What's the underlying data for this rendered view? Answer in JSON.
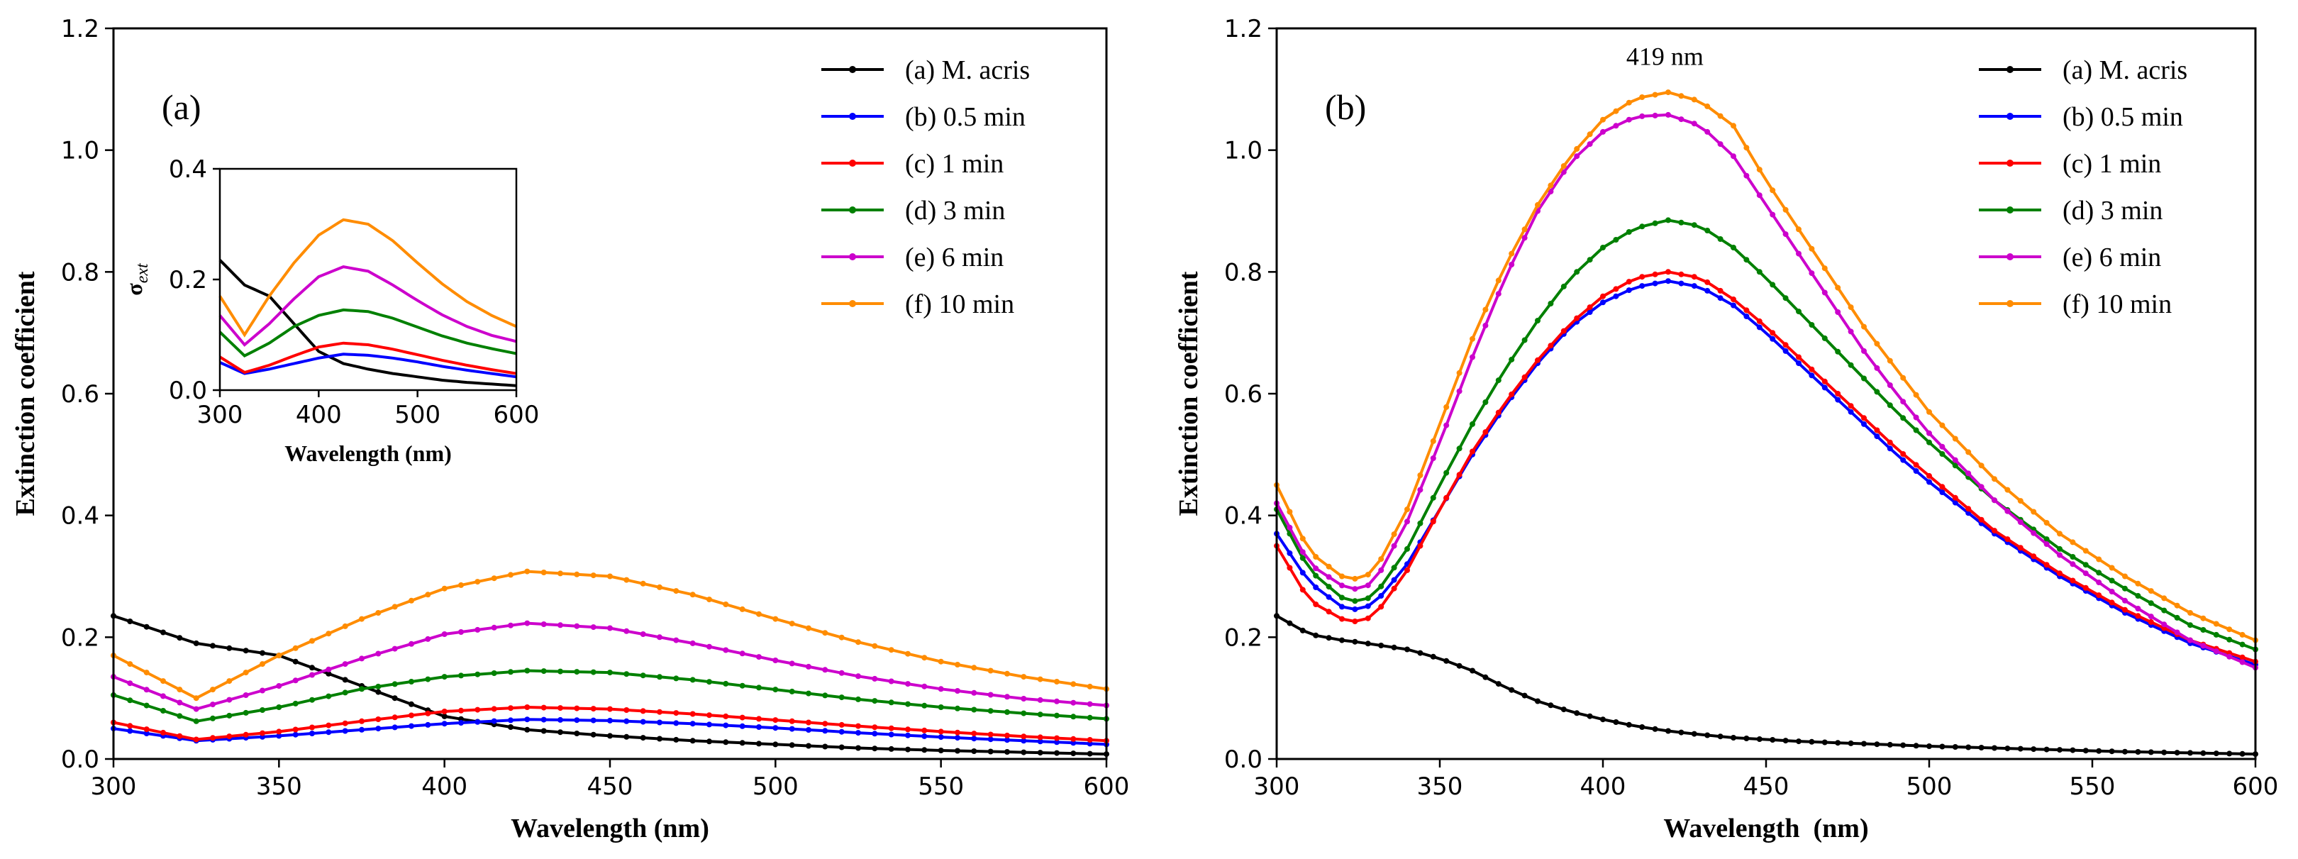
{
  "chart_data": [
    {
      "type": "line",
      "panel_label": "(a)",
      "xlabel": "Wavelength (nm)",
      "ylabel": "Extinction coefficient",
      "xlim": [
        300,
        600
      ],
      "ylim": [
        0,
        1.2
      ],
      "x_ticks": [
        "300",
        "350",
        "400",
        "450",
        "500",
        "550",
        "600"
      ],
      "y_ticks": [
        "0.0",
        "0.2",
        "0.4",
        "0.6",
        "0.8",
        "1.0",
        "1.2"
      ],
      "legend_position": "top-right",
      "x": [
        300,
        325,
        350,
        375,
        400,
        425,
        450,
        475,
        500,
        525,
        550,
        575,
        600
      ],
      "series": [
        {
          "name": "(a) M. acris",
          "color": "#000000",
          "values": [
            0.235,
            0.19,
            0.17,
            0.12,
            0.07,
            0.048,
            0.038,
            0.03,
            0.024,
            0.018,
            0.014,
            0.011,
            0.008
          ]
        },
        {
          "name": "(b) 0.5 min",
          "color": "#0000ff",
          "values": [
            0.05,
            0.03,
            0.038,
            0.048,
            0.058,
            0.065,
            0.063,
            0.058,
            0.051,
            0.043,
            0.036,
            0.03,
            0.024
          ]
        },
        {
          "name": "(c) 1 min",
          "color": "#ff0000",
          "values": [
            0.06,
            0.032,
            0.045,
            0.062,
            0.078,
            0.085,
            0.082,
            0.074,
            0.064,
            0.054,
            0.045,
            0.037,
            0.03
          ]
        },
        {
          "name": "(d) 3 min",
          "color": "#008000",
          "values": [
            0.105,
            0.062,
            0.085,
            0.115,
            0.135,
            0.145,
            0.142,
            0.13,
            0.114,
            0.098,
            0.085,
            0.075,
            0.066
          ]
        },
        {
          "name": "(e) 6 min",
          "color": "#cc00cc",
          "values": [
            0.135,
            0.082,
            0.12,
            0.165,
            0.205,
            0.223,
            0.215,
            0.19,
            0.162,
            0.136,
            0.115,
            0.099,
            0.088
          ]
        },
        {
          "name": "(f) 10 min",
          "color": "#ff8c00",
          "values": [
            0.17,
            0.1,
            0.17,
            0.23,
            0.28,
            0.308,
            0.3,
            0.27,
            0.23,
            0.192,
            0.16,
            0.135,
            0.115
          ]
        }
      ],
      "inset": {
        "ylabel": "σext",
        "xlabel": "Wavelength (nm)",
        "xlim": [
          300,
          600
        ],
        "ylim": [
          0,
          0.4
        ],
        "x_ticks": [
          "300",
          "400",
          "500",
          "600"
        ],
        "y_ticks": [
          "0.0",
          "0.2",
          "0.4"
        ]
      }
    },
    {
      "type": "line",
      "panel_label": "(b)",
      "xlabel": "Wavelength  (nm)",
      "ylabel": "Extinction coefficient",
      "xlim": [
        300,
        600
      ],
      "ylim": [
        0,
        1.2
      ],
      "x_ticks": [
        "300",
        "350",
        "400",
        "450",
        "500",
        "550",
        "600"
      ],
      "y_ticks": [
        "0.0",
        "0.2",
        "0.4",
        "0.6",
        "0.8",
        "1.0",
        "1.2"
      ],
      "legend_position": "top-right",
      "annotation": "419 nm",
      "annotation_x": 419,
      "annotation_y": 1.14,
      "x": [
        300,
        310,
        320,
        325,
        330,
        340,
        350,
        360,
        370,
        380,
        390,
        400,
        410,
        420,
        430,
        440,
        450,
        460,
        470,
        480,
        490,
        500,
        520,
        540,
        560,
        580,
        600
      ],
      "series": [
        {
          "name": "(a) M. acris",
          "color": "#000000",
          "values": [
            0.235,
            0.205,
            0.195,
            0.192,
            0.188,
            0.18,
            0.165,
            0.145,
            0.118,
            0.095,
            0.078,
            0.065,
            0.054,
            0.046,
            0.04,
            0.035,
            0.032,
            0.029,
            0.027,
            0.025,
            0.023,
            0.021,
            0.018,
            0.015,
            0.012,
            0.01,
            0.008
          ]
        },
        {
          "name": "(b) 0.5 min",
          "color": "#0000ff",
          "values": [
            0.37,
            0.29,
            0.25,
            0.245,
            0.255,
            0.32,
            0.41,
            0.5,
            0.58,
            0.65,
            0.71,
            0.75,
            0.775,
            0.785,
            0.775,
            0.745,
            0.7,
            0.65,
            0.6,
            0.55,
            0.5,
            0.455,
            0.37,
            0.3,
            0.24,
            0.19,
            0.155
          ]
        },
        {
          "name": "(c) 1 min",
          "color": "#ff0000",
          "values": [
            0.35,
            0.26,
            0.23,
            0.225,
            0.235,
            0.31,
            0.41,
            0.505,
            0.585,
            0.655,
            0.715,
            0.76,
            0.79,
            0.8,
            0.79,
            0.755,
            0.71,
            0.66,
            0.61,
            0.56,
            0.51,
            0.465,
            0.375,
            0.305,
            0.245,
            0.195,
            0.16
          ]
        },
        {
          "name": "(d) 3 min",
          "color": "#008000",
          "values": [
            0.41,
            0.31,
            0.265,
            0.258,
            0.268,
            0.345,
            0.45,
            0.55,
            0.64,
            0.72,
            0.79,
            0.84,
            0.872,
            0.885,
            0.875,
            0.84,
            0.79,
            0.735,
            0.68,
            0.625,
            0.57,
            0.52,
            0.425,
            0.345,
            0.28,
            0.22,
            0.18
          ]
        },
        {
          "name": "(e) 6 min",
          "color": "#cc00cc",
          "values": [
            0.42,
            0.32,
            0.285,
            0.278,
            0.29,
            0.39,
            0.52,
            0.66,
            0.79,
            0.9,
            0.98,
            1.03,
            1.055,
            1.058,
            1.04,
            0.99,
            0.91,
            0.83,
            0.75,
            0.67,
            0.6,
            0.535,
            0.425,
            0.335,
            0.26,
            0.195,
            0.15
          ]
        },
        {
          "name": "(f) 10 min",
          "color": "#ff8c00",
          "values": [
            0.45,
            0.34,
            0.3,
            0.295,
            0.308,
            0.41,
            0.55,
            0.69,
            0.81,
            0.91,
            0.99,
            1.05,
            1.085,
            1.095,
            1.08,
            1.04,
            0.95,
            0.87,
            0.79,
            0.71,
            0.64,
            0.57,
            0.46,
            0.37,
            0.3,
            0.24,
            0.195
          ]
        }
      ]
    }
  ]
}
